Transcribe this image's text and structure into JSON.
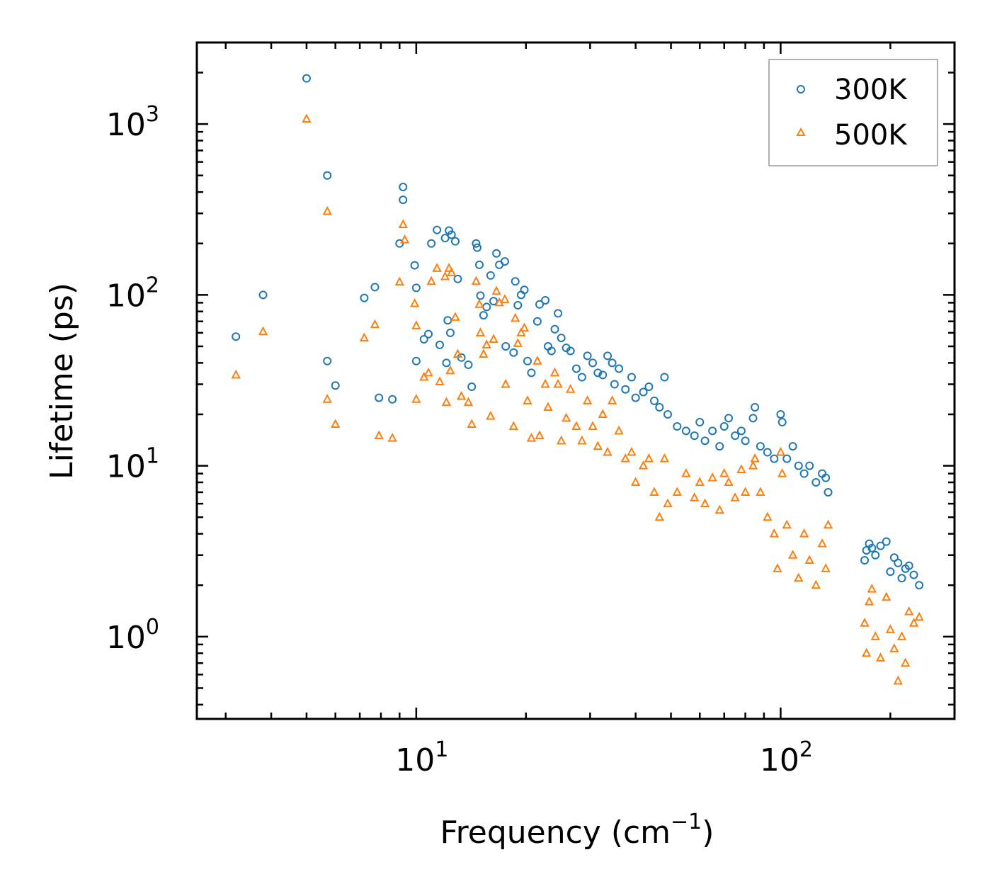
{
  "chart_data": {
    "type": "scatter",
    "title": "",
    "xlabel": "Frequency (cm",
    "xlabel_exp": "−1",
    "xlabel_tail": ")",
    "ylabel": "Lifetime (ps)",
    "xscale": "log",
    "yscale": "log",
    "xlim": [
      2.5,
      300
    ],
    "ylim": [
      0.33,
      3000
    ],
    "x_major_ticks": [
      10,
      100
    ],
    "x_tick_labels": [
      {
        "base": "10",
        "exp": "1"
      },
      {
        "base": "10",
        "exp": "2"
      }
    ],
    "y_major_ticks": [
      1,
      10,
      100,
      1000
    ],
    "y_tick_labels": [
      {
        "base": "10",
        "exp": "0"
      },
      {
        "base": "10",
        "exp": "1"
      },
      {
        "base": "10",
        "exp": "2"
      },
      {
        "base": "10",
        "exp": "3"
      }
    ],
    "legend_position": "top-right",
    "series": [
      {
        "name": "300K",
        "color": "#1f77b4",
        "marker": "circle",
        "points": [
          [
            3.2,
            57
          ],
          [
            3.8,
            100
          ],
          [
            5.0,
            1850
          ],
          [
            5.7,
            500
          ],
          [
            5.7,
            41
          ],
          [
            6.0,
            29.5
          ],
          [
            7.2,
            96
          ],
          [
            7.7,
            111
          ],
          [
            7.9,
            25
          ],
          [
            8.6,
            24.5
          ],
          [
            9.0,
            200
          ],
          [
            9.2,
            428
          ],
          [
            9.2,
            360
          ],
          [
            9.9,
            149
          ],
          [
            10.0,
            110
          ],
          [
            10.0,
            41
          ],
          [
            10.5,
            55
          ],
          [
            10.8,
            59
          ],
          [
            11.0,
            200
          ],
          [
            11.4,
            240
          ],
          [
            11.6,
            51
          ],
          [
            12.0,
            215
          ],
          [
            12.1,
            40
          ],
          [
            12.2,
            71
          ],
          [
            12.3,
            238
          ],
          [
            12.4,
            60
          ],
          [
            12.5,
            225
          ],
          [
            12.8,
            206
          ],
          [
            13.0,
            124
          ],
          [
            13.3,
            43
          ],
          [
            13.9,
            39
          ],
          [
            14.2,
            29
          ],
          [
            14.6,
            200
          ],
          [
            14.7,
            189
          ],
          [
            14.9,
            150
          ],
          [
            15.0,
            99
          ],
          [
            15.3,
            76
          ],
          [
            15.6,
            85
          ],
          [
            16.0,
            130
          ],
          [
            16.3,
            92
          ],
          [
            16.6,
            175
          ],
          [
            16.9,
            150
          ],
          [
            17.5,
            157
          ],
          [
            17.6,
            50
          ],
          [
            18.5,
            46
          ],
          [
            18.7,
            120
          ],
          [
            19.0,
            87
          ],
          [
            19.4,
            100
          ],
          [
            19.8,
            107
          ],
          [
            20.2,
            41
          ],
          [
            20.7,
            35
          ],
          [
            21.5,
            70
          ],
          [
            21.8,
            88
          ],
          [
            22.6,
            93
          ],
          [
            23.0,
            50
          ],
          [
            23.5,
            47
          ],
          [
            24.0,
            63
          ],
          [
            24.5,
            78
          ],
          [
            25.0,
            56
          ],
          [
            25.8,
            49
          ],
          [
            26.5,
            47
          ],
          [
            27.5,
            37
          ],
          [
            28.5,
            33
          ],
          [
            29.5,
            44
          ],
          [
            30.5,
            40
          ],
          [
            31.5,
            35
          ],
          [
            32.5,
            34
          ],
          [
            33.5,
            44
          ],
          [
            34.5,
            40
          ],
          [
            35.0,
            30
          ],
          [
            36.0,
            37
          ],
          [
            37.5,
            28
          ],
          [
            39.0,
            33
          ],
          [
            40.0,
            25
          ],
          [
            42.0,
            27
          ],
          [
            43.5,
            29
          ],
          [
            45.0,
            24
          ],
          [
            46.5,
            22
          ],
          [
            48.0,
            33
          ],
          [
            49.0,
            20
          ],
          [
            52.0,
            17
          ],
          [
            55.0,
            16
          ],
          [
            58.0,
            15
          ],
          [
            60.0,
            18
          ],
          [
            62.0,
            14
          ],
          [
            65.0,
            16
          ],
          [
            68.0,
            13
          ],
          [
            70.0,
            17
          ],
          [
            72.0,
            19
          ],
          [
            75.0,
            15
          ],
          [
            78.0,
            16
          ],
          [
            80.0,
            14
          ],
          [
            84.0,
            19
          ],
          [
            85.0,
            22
          ],
          [
            88.0,
            13
          ],
          [
            92.0,
            12
          ],
          [
            96.0,
            11
          ],
          [
            100.0,
            20
          ],
          [
            101.0,
            18
          ],
          [
            104.0,
            11
          ],
          [
            108.0,
            13
          ],
          [
            112.0,
            10
          ],
          [
            116.0,
            9
          ],
          [
            120.0,
            10
          ],
          [
            125.0,
            8
          ],
          [
            130.0,
            9
          ],
          [
            133.0,
            8.5
          ],
          [
            135.0,
            7
          ],
          [
            170.0,
            2.8
          ],
          [
            172.0,
            3.2
          ],
          [
            175.0,
            3.5
          ],
          [
            178.0,
            3.3
          ],
          [
            182.0,
            3.0
          ],
          [
            188.0,
            3.4
          ],
          [
            195.0,
            3.6
          ],
          [
            200.0,
            2.4
          ],
          [
            205.0,
            2.9
          ],
          [
            210.0,
            2.7
          ],
          [
            215.0,
            2.2
          ],
          [
            220.0,
            2.5
          ],
          [
            225.0,
            2.6
          ],
          [
            232.0,
            2.3
          ],
          [
            240.0,
            2.0
          ]
        ]
      },
      {
        "name": "500K",
        "color": "#ff7f0e",
        "marker": "triangle",
        "points": [
          [
            3.2,
            34
          ],
          [
            3.8,
            61
          ],
          [
            5.0,
            1070
          ],
          [
            5.7,
            308
          ],
          [
            5.7,
            24.5
          ],
          [
            6.0,
            17.5
          ],
          [
            7.2,
            56
          ],
          [
            7.7,
            67
          ],
          [
            7.9,
            15
          ],
          [
            8.6,
            14.5
          ],
          [
            9.0,
            119
          ],
          [
            9.2,
            258
          ],
          [
            9.3,
            210
          ],
          [
            9.9,
            89
          ],
          [
            10.0,
            66
          ],
          [
            10.0,
            24.5
          ],
          [
            10.5,
            33
          ],
          [
            10.8,
            35
          ],
          [
            11.0,
            120
          ],
          [
            11.4,
            143
          ],
          [
            11.6,
            31
          ],
          [
            12.0,
            128
          ],
          [
            12.1,
            23.5
          ],
          [
            12.3,
            143
          ],
          [
            12.4,
            36
          ],
          [
            12.5,
            135
          ],
          [
            12.8,
            74
          ],
          [
            13.0,
            45
          ],
          [
            13.3,
            25.5
          ],
          [
            13.9,
            23.5
          ],
          [
            14.2,
            17.5
          ],
          [
            14.6,
            120
          ],
          [
            14.9,
            88
          ],
          [
            15.0,
            60
          ],
          [
            15.3,
            45
          ],
          [
            15.6,
            51
          ],
          [
            16.0,
            19.5
          ],
          [
            16.3,
            55
          ],
          [
            16.6,
            105
          ],
          [
            16.9,
            90
          ],
          [
            17.5,
            94
          ],
          [
            17.6,
            30
          ],
          [
            18.5,
            17
          ],
          [
            18.7,
            73
          ],
          [
            19.0,
            52
          ],
          [
            19.4,
            60
          ],
          [
            19.8,
            64
          ],
          [
            20.2,
            24
          ],
          [
            20.7,
            14.5
          ],
          [
            21.5,
            41
          ],
          [
            21.8,
            15
          ],
          [
            22.6,
            30
          ],
          [
            23.0,
            22
          ],
          [
            24.0,
            35
          ],
          [
            24.5,
            30
          ],
          [
            25.0,
            14
          ],
          [
            25.8,
            19
          ],
          [
            26.5,
            28
          ],
          [
            27.5,
            17
          ],
          [
            28.5,
            14
          ],
          [
            29.5,
            24
          ],
          [
            30.5,
            17
          ],
          [
            31.5,
            13
          ],
          [
            32.5,
            20
          ],
          [
            33.5,
            12
          ],
          [
            34.5,
            24
          ],
          [
            36.0,
            16
          ],
          [
            37.5,
            11
          ],
          [
            39.0,
            12
          ],
          [
            40.0,
            8
          ],
          [
            42.0,
            10
          ],
          [
            43.5,
            11
          ],
          [
            45.0,
            7
          ],
          [
            46.5,
            5
          ],
          [
            48.0,
            11
          ],
          [
            49.0,
            6
          ],
          [
            52.0,
            7
          ],
          [
            55.0,
            9
          ],
          [
            58.0,
            6.5
          ],
          [
            60.0,
            8
          ],
          [
            62.0,
            6
          ],
          [
            65.0,
            8.5
          ],
          [
            68.0,
            5.5
          ],
          [
            70.0,
            9
          ],
          [
            72.0,
            8
          ],
          [
            75.0,
            6.5
          ],
          [
            78.0,
            9.5
          ],
          [
            80.0,
            7
          ],
          [
            84.0,
            10
          ],
          [
            85.0,
            11
          ],
          [
            88.0,
            7
          ],
          [
            92.0,
            5
          ],
          [
            96.0,
            4
          ],
          [
            98.0,
            2.5
          ],
          [
            100.0,
            12
          ],
          [
            101.0,
            9
          ],
          [
            104.0,
            4.5
          ],
          [
            108.0,
            3
          ],
          [
            112.0,
            2.2
          ],
          [
            116.0,
            4
          ],
          [
            120.0,
            2.8
          ],
          [
            125.0,
            2.0
          ],
          [
            130.0,
            3.5
          ],
          [
            133.0,
            2.5
          ],
          [
            135.0,
            4.5
          ],
          [
            170.0,
            1.2
          ],
          [
            172.0,
            0.8
          ],
          [
            175.0,
            1.6
          ],
          [
            178.0,
            1.9
          ],
          [
            182.0,
            1.0
          ],
          [
            188.0,
            0.75
          ],
          [
            195.0,
            1.7
          ],
          [
            200.0,
            1.1
          ],
          [
            205.0,
            0.85
          ],
          [
            210.0,
            0.55
          ],
          [
            215.0,
            1.0
          ],
          [
            220.0,
            0.7
          ],
          [
            225.0,
            1.4
          ],
          [
            232.0,
            1.2
          ],
          [
            240.0,
            1.3
          ]
        ]
      }
    ]
  }
}
